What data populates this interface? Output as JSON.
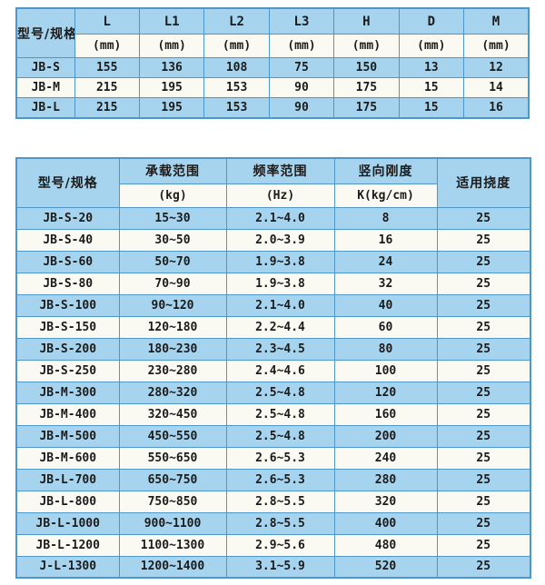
{
  "colors": {
    "cell_blue": "#A6D4EE",
    "cell_white": "#FAFAF2",
    "grid_border": "#4E97C8",
    "text": "#1b1b1b",
    "page_background": "#ffffff"
  },
  "dimension_table": {
    "corner_label": "型号/规格",
    "columns": [
      "L",
      "L1",
      "L2",
      "L3",
      "H",
      "D",
      "M"
    ],
    "units": [
      "(mm)",
      "(mm)",
      "(mm)",
      "(mm)",
      "(mm)",
      "(mm)",
      "(mm)"
    ],
    "rows": [
      [
        "JB-S",
        "155",
        "136",
        "108",
        "75",
        "150",
        "13",
        "12"
      ],
      [
        "JB-M",
        "215",
        "195",
        "153",
        "90",
        "175",
        "15",
        "14"
      ],
      [
        "JB-L",
        "215",
        "195",
        "153",
        "90",
        "175",
        "15",
        "16"
      ]
    ]
  },
  "spec_table": {
    "corner_label": "型号/规格",
    "groups": [
      {
        "title": "承载范围",
        "unit": "(kg)"
      },
      {
        "title": "频率范围",
        "unit": "(Hz)"
      },
      {
        "title": "竖向刚度",
        "unit": "K(kg/cm)"
      }
    ],
    "deflection_label": "适用挠度",
    "rows": [
      [
        "JB-S-20",
        "15~30",
        "2.1~4.0",
        "8",
        "25"
      ],
      [
        "JB-S-40",
        "30~50",
        "2.0~3.9",
        "16",
        "25"
      ],
      [
        "JB-S-60",
        "50~70",
        "1.9~3.8",
        "24",
        "25"
      ],
      [
        "JB-S-80",
        "70~90",
        "1.9~3.8",
        "32",
        "25"
      ],
      [
        "JB-S-100",
        "90~120",
        "2.1~4.0",
        "40",
        "25"
      ],
      [
        "JB-S-150",
        "120~180",
        "2.2~4.4",
        "60",
        "25"
      ],
      [
        "JB-S-200",
        "180~230",
        "2.3~4.5",
        "80",
        "25"
      ],
      [
        "JB-S-250",
        "230~280",
        "2.4~4.6",
        "100",
        "25"
      ],
      [
        "JB-M-300",
        "280~320",
        "2.5~4.8",
        "120",
        "25"
      ],
      [
        "JB-M-400",
        "320~450",
        "2.5~4.8",
        "160",
        "25"
      ],
      [
        "JB-M-500",
        "450~550",
        "2.5~4.8",
        "200",
        "25"
      ],
      [
        "JB-M-600",
        "550~650",
        "2.6~5.3",
        "240",
        "25"
      ],
      [
        "JB-L-700",
        "650~750",
        "2.6~5.3",
        "280",
        "25"
      ],
      [
        "JB-L-800",
        "750~850",
        "2.8~5.5",
        "320",
        "25"
      ],
      [
        "JB-L-1000",
        "900~1100",
        "2.8~5.5",
        "400",
        "25"
      ],
      [
        "JB-L-1200",
        "1100~1300",
        "2.9~5.6",
        "480",
        "25"
      ],
      [
        "J-L-1300",
        "1200~1400",
        "3.1~5.9",
        "520",
        "25"
      ]
    ]
  }
}
